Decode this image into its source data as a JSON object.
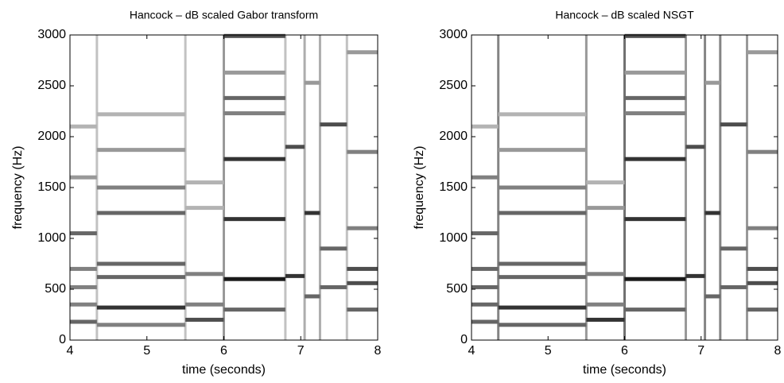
{
  "chart_data": [
    {
      "type": "spectrogram",
      "title": "Hancock – dB scaled Gabor transform",
      "x_label": "time (seconds)",
      "y_label": "frequency (Hz)",
      "xlim": [
        4,
        8
      ],
      "xticks": [
        4,
        5,
        6,
        7,
        8
      ],
      "ylim": [
        0,
        3000
      ],
      "yticks": [
        0,
        500,
        1000,
        1500,
        2000,
        2500,
        3000
      ],
      "onsets": [
        {
          "t": 4.35,
          "level": 0.3
        },
        {
          "t": 5.5,
          "level": 0.3
        },
        {
          "t": 6.0,
          "level": 0.5
        },
        {
          "t": 6.8,
          "level": 0.3
        },
        {
          "t": 7.05,
          "level": 0.4
        },
        {
          "t": 7.25,
          "level": 0.4
        },
        {
          "t": 7.6,
          "level": 0.3
        }
      ],
      "partials": [
        {
          "t": [
            4.0,
            4.35
          ],
          "f": 2100,
          "level": 0.3
        },
        {
          "t": [
            4.0,
            4.35
          ],
          "f": 1600,
          "level": 0.4
        },
        {
          "t": [
            4.0,
            4.35
          ],
          "f": 1050,
          "level": 0.6
        },
        {
          "t": [
            4.0,
            4.35
          ],
          "f": 700,
          "level": 0.5
        },
        {
          "t": [
            4.0,
            4.35
          ],
          "f": 520,
          "level": 0.5
        },
        {
          "t": [
            4.0,
            4.35
          ],
          "f": 350,
          "level": 0.5
        },
        {
          "t": [
            4.0,
            4.35
          ],
          "f": 180,
          "level": 0.6
        },
        {
          "t": [
            4.35,
            5.5
          ],
          "f": 2220,
          "level": 0.3
        },
        {
          "t": [
            4.35,
            5.5
          ],
          "f": 1870,
          "level": 0.4
        },
        {
          "t": [
            4.35,
            5.5
          ],
          "f": 1500,
          "level": 0.5
        },
        {
          "t": [
            4.35,
            5.5
          ],
          "f": 1250,
          "level": 0.6
        },
        {
          "t": [
            4.35,
            5.5
          ],
          "f": 750,
          "level": 0.6
        },
        {
          "t": [
            4.35,
            5.5
          ],
          "f": 620,
          "level": 0.6
        },
        {
          "t": [
            4.35,
            5.5
          ],
          "f": 320,
          "level": 0.8
        },
        {
          "t": [
            4.35,
            5.5
          ],
          "f": 150,
          "level": 0.5
        },
        {
          "t": [
            5.5,
            6.0
          ],
          "f": 1550,
          "level": 0.3
        },
        {
          "t": [
            5.5,
            6.0
          ],
          "f": 1300,
          "level": 0.3
        },
        {
          "t": [
            5.5,
            6.0
          ],
          "f": 650,
          "level": 0.5
        },
        {
          "t": [
            5.5,
            6.0
          ],
          "f": 350,
          "level": 0.5
        },
        {
          "t": [
            5.5,
            6.0
          ],
          "f": 200,
          "level": 0.7
        },
        {
          "t": [
            6.0,
            6.8
          ],
          "f": 2990,
          "level": 0.7
        },
        {
          "t": [
            6.0,
            6.8
          ],
          "f": 2630,
          "level": 0.4
        },
        {
          "t": [
            6.0,
            6.8
          ],
          "f": 2380,
          "level": 0.6
        },
        {
          "t": [
            6.0,
            6.8
          ],
          "f": 2230,
          "level": 0.5
        },
        {
          "t": [
            6.0,
            6.8
          ],
          "f": 1780,
          "level": 0.8
        },
        {
          "t": [
            6.0,
            6.8
          ],
          "f": 1190,
          "level": 0.8
        },
        {
          "t": [
            6.0,
            6.8
          ],
          "f": 600,
          "level": 0.9
        },
        {
          "t": [
            6.0,
            6.8
          ],
          "f": 300,
          "level": 0.6
        },
        {
          "t": [
            6.8,
            7.05
          ],
          "f": 1900,
          "level": 0.7
        },
        {
          "t": [
            6.8,
            7.05
          ],
          "f": 630,
          "level": 0.8
        },
        {
          "t": [
            7.05,
            7.25
          ],
          "f": 2530,
          "level": 0.4
        },
        {
          "t": [
            7.05,
            7.25
          ],
          "f": 1250,
          "level": 0.8
        },
        {
          "t": [
            7.05,
            7.25
          ],
          "f": 430,
          "level": 0.6
        },
        {
          "t": [
            7.25,
            7.6
          ],
          "f": 2120,
          "level": 0.7
        },
        {
          "t": [
            7.25,
            7.6
          ],
          "f": 900,
          "level": 0.6
        },
        {
          "t": [
            7.25,
            7.6
          ],
          "f": 520,
          "level": 0.6
        },
        {
          "t": [
            7.6,
            8.0
          ],
          "f": 2830,
          "level": 0.4
        },
        {
          "t": [
            7.6,
            8.0
          ],
          "f": 1850,
          "level": 0.5
        },
        {
          "t": [
            7.6,
            8.0
          ],
          "f": 1100,
          "level": 0.5
        },
        {
          "t": [
            7.6,
            8.0
          ],
          "f": 700,
          "level": 0.7
        },
        {
          "t": [
            7.6,
            8.0
          ],
          "f": 560,
          "level": 0.7
        },
        {
          "t": [
            7.6,
            8.0
          ],
          "f": 300,
          "level": 0.6
        }
      ]
    },
    {
      "type": "spectrogram",
      "title": "Hancock – dB scaled NSGT",
      "x_label": "time (seconds)",
      "y_label": "frequency (Hz)",
      "xlim": [
        4,
        8
      ],
      "xticks": [
        4,
        5,
        6,
        7,
        8
      ],
      "ylim": [
        0,
        3000
      ],
      "yticks": [
        0,
        500,
        1000,
        1500,
        2000,
        2500,
        3000
      ],
      "onsets": [
        {
          "t": 4.35,
          "level": 0.6
        },
        {
          "t": 5.5,
          "level": 0.5
        },
        {
          "t": 6.0,
          "level": 0.7
        },
        {
          "t": 6.8,
          "level": 0.5
        },
        {
          "t": 7.05,
          "level": 0.6
        },
        {
          "t": 7.25,
          "level": 0.6
        },
        {
          "t": 7.6,
          "level": 0.5
        }
      ],
      "partials": [
        {
          "t": [
            4.0,
            4.35
          ],
          "f": 2100,
          "level": 0.3
        },
        {
          "t": [
            4.0,
            4.35
          ],
          "f": 1600,
          "level": 0.5
        },
        {
          "t": [
            4.0,
            4.35
          ],
          "f": 1050,
          "level": 0.6
        },
        {
          "t": [
            4.0,
            4.35
          ],
          "f": 700,
          "level": 0.6
        },
        {
          "t": [
            4.0,
            4.35
          ],
          "f": 520,
          "level": 0.6
        },
        {
          "t": [
            4.0,
            4.35
          ],
          "f": 350,
          "level": 0.6
        },
        {
          "t": [
            4.0,
            4.35
          ],
          "f": 180,
          "level": 0.6
        },
        {
          "t": [
            4.35,
            5.5
          ],
          "f": 2220,
          "level": 0.3
        },
        {
          "t": [
            4.35,
            5.5
          ],
          "f": 1870,
          "level": 0.4
        },
        {
          "t": [
            4.35,
            5.5
          ],
          "f": 1500,
          "level": 0.5
        },
        {
          "t": [
            4.35,
            5.5
          ],
          "f": 1250,
          "level": 0.6
        },
        {
          "t": [
            4.35,
            5.5
          ],
          "f": 750,
          "level": 0.6
        },
        {
          "t": [
            4.35,
            5.5
          ],
          "f": 620,
          "level": 0.6
        },
        {
          "t": [
            4.35,
            5.5
          ],
          "f": 320,
          "level": 0.8
        },
        {
          "t": [
            4.35,
            5.5
          ],
          "f": 150,
          "level": 0.6
        },
        {
          "t": [
            5.5,
            6.0
          ],
          "f": 1550,
          "level": 0.3
        },
        {
          "t": [
            5.5,
            6.0
          ],
          "f": 1300,
          "level": 0.4
        },
        {
          "t": [
            5.5,
            6.0
          ],
          "f": 650,
          "level": 0.5
        },
        {
          "t": [
            5.5,
            6.0
          ],
          "f": 350,
          "level": 0.5
        },
        {
          "t": [
            5.5,
            6.0
          ],
          "f": 200,
          "level": 0.8
        },
        {
          "t": [
            6.0,
            6.8
          ],
          "f": 2990,
          "level": 0.7
        },
        {
          "t": [
            6.0,
            6.8
          ],
          "f": 2630,
          "level": 0.4
        },
        {
          "t": [
            6.0,
            6.8
          ],
          "f": 2380,
          "level": 0.6
        },
        {
          "t": [
            6.0,
            6.8
          ],
          "f": 2230,
          "level": 0.5
        },
        {
          "t": [
            6.0,
            6.8
          ],
          "f": 1780,
          "level": 0.8
        },
        {
          "t": [
            6.0,
            6.8
          ],
          "f": 1190,
          "level": 0.8
        },
        {
          "t": [
            6.0,
            6.8
          ],
          "f": 600,
          "level": 0.9
        },
        {
          "t": [
            6.0,
            6.8
          ],
          "f": 300,
          "level": 0.6
        },
        {
          "t": [
            6.8,
            7.05
          ],
          "f": 1900,
          "level": 0.7
        },
        {
          "t": [
            6.8,
            7.05
          ],
          "f": 630,
          "level": 0.8
        },
        {
          "t": [
            7.05,
            7.25
          ],
          "f": 2530,
          "level": 0.4
        },
        {
          "t": [
            7.05,
            7.25
          ],
          "f": 1250,
          "level": 0.8
        },
        {
          "t": [
            7.05,
            7.25
          ],
          "f": 430,
          "level": 0.6
        },
        {
          "t": [
            7.25,
            7.6
          ],
          "f": 2120,
          "level": 0.7
        },
        {
          "t": [
            7.25,
            7.6
          ],
          "f": 900,
          "level": 0.6
        },
        {
          "t": [
            7.25,
            7.6
          ],
          "f": 520,
          "level": 0.6
        },
        {
          "t": [
            7.6,
            8.0
          ],
          "f": 2830,
          "level": 0.4
        },
        {
          "t": [
            7.6,
            8.0
          ],
          "f": 1850,
          "level": 0.5
        },
        {
          "t": [
            7.6,
            8.0
          ],
          "f": 1100,
          "level": 0.5
        },
        {
          "t": [
            7.6,
            8.0
          ],
          "f": 700,
          "level": 0.7
        },
        {
          "t": [
            7.6,
            8.0
          ],
          "f": 560,
          "level": 0.7
        },
        {
          "t": [
            7.6,
            8.0
          ],
          "f": 300,
          "level": 0.6
        }
      ]
    }
  ]
}
